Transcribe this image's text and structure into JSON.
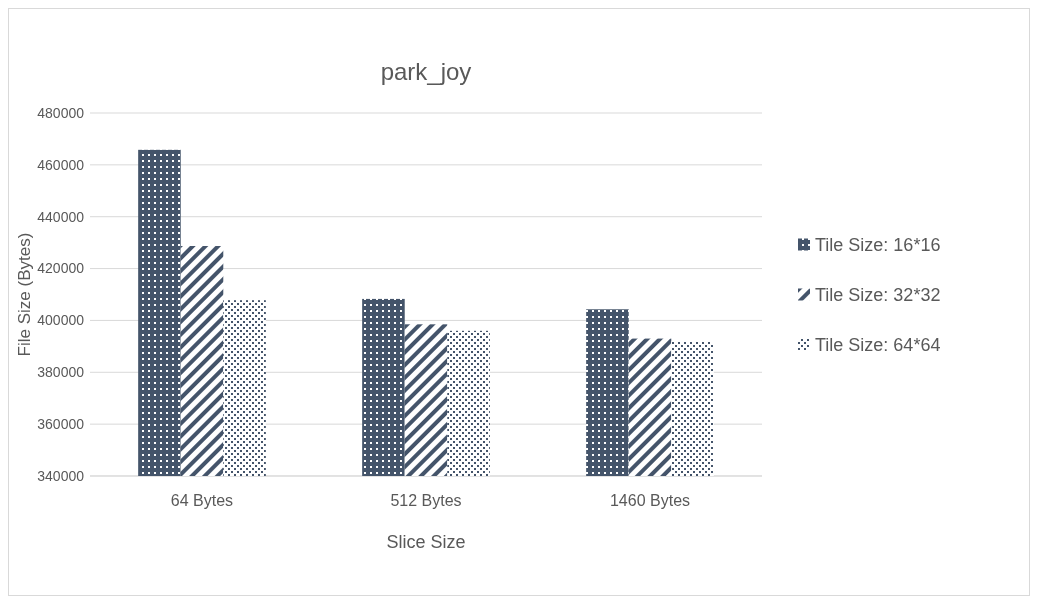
{
  "chart_data": {
    "type": "bar",
    "title": "park_joy",
    "xlabel": "Slice Size",
    "ylabel": "File Size (Bytes)",
    "categories": [
      "64 Bytes",
      "512 Bytes",
      "1460 Bytes"
    ],
    "series": [
      {
        "name": "Tile Size: 16*16",
        "color": "#44546a",
        "values": [
          465800,
          408300,
          404300
        ]
      },
      {
        "name": "Tile Size: 32*32",
        "color": "#44546a",
        "values": [
          428700,
          398500,
          393000
        ]
      },
      {
        "name": "Tile Size: 64*64",
        "color": "#44546a",
        "values": [
          407800,
          396000,
          392000
        ]
      }
    ],
    "ylim": [
      340000,
      480000
    ],
    "yticks": [
      340000,
      360000,
      380000,
      400000,
      420000,
      440000,
      460000,
      480000
    ],
    "grid": "y",
    "legend": "right"
  }
}
